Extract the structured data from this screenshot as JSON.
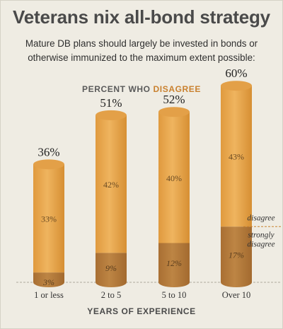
{
  "title": "Veterans nix all-bond strategy",
  "subtitle_lines": [
    "Mature DB plans should largely be invested in bonds or",
    "otherwise immunized to the maximum extent possible:"
  ],
  "chart_header": {
    "prefix": "PERCENT WHO ",
    "accent": "DISAGREE"
  },
  "x_axis_title": "YEARS OF EXPERIENCE",
  "legend": {
    "upper": "disagree",
    "lower_line1": "strongly",
    "lower_line2": "disagree"
  },
  "colors": {
    "background": "#efece3",
    "bar_light": "#e8a74e",
    "bar_mid": "#d99436",
    "bar_dark": "#b37a3a",
    "accent": "#c9812f",
    "legend_line": "#c9812f"
  },
  "chart_data": {
    "type": "bar",
    "stacked": true,
    "title": "Veterans nix all-bond strategy",
    "xlabel": "YEARS OF EXPERIENCE",
    "ylabel": "PERCENT WHO DISAGREE",
    "ylim": [
      0,
      60
    ],
    "categories": [
      "1 or less",
      "2 to 5",
      "5 to 10",
      "Over 10"
    ],
    "series": [
      {
        "name": "strongly disagree",
        "values": [
          3,
          9,
          12,
          17
        ]
      },
      {
        "name": "disagree",
        "values": [
          33,
          42,
          40,
          43
        ]
      }
    ],
    "totals": [
      36,
      51,
      52,
      60
    ],
    "total_labels": [
      "36%",
      "51%",
      "52%",
      "60%"
    ],
    "strong_labels": [
      "3%",
      "9%",
      "12%",
      "17%"
    ],
    "disagree_labels": [
      "33%",
      "42%",
      "40%",
      "43%"
    ]
  }
}
